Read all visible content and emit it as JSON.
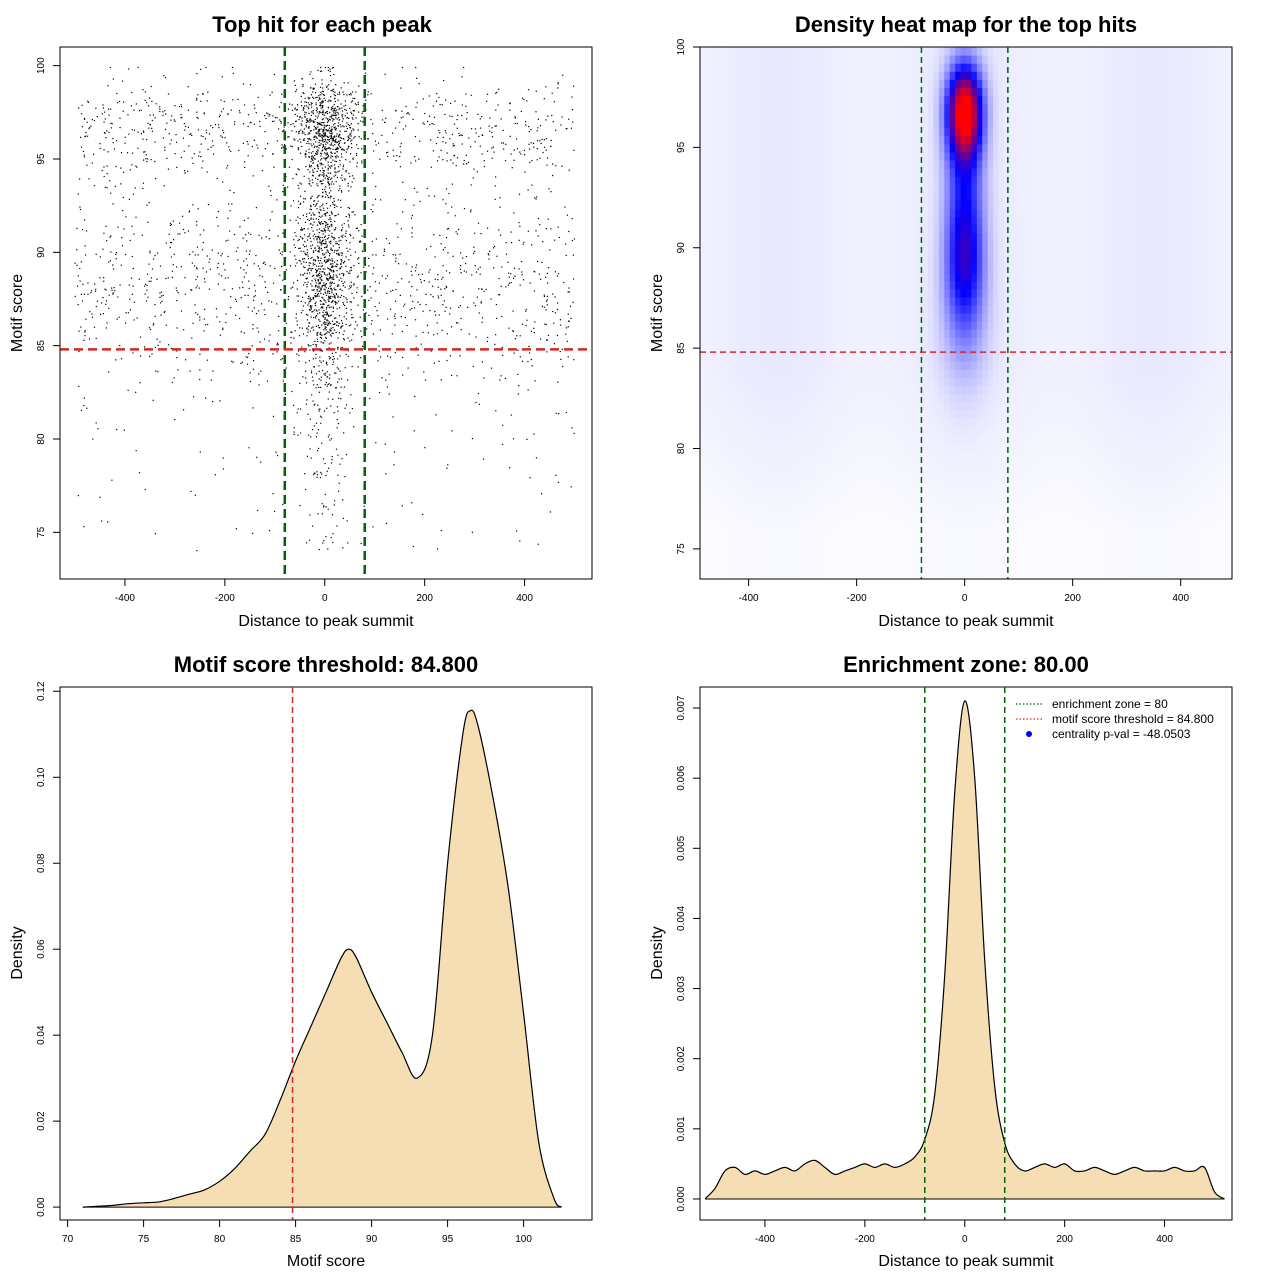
{
  "colors": {
    "enrichment_zone_line": "#006400",
    "threshold_line": "#d62728",
    "density_fill": "#f5deb3",
    "points": "#000000",
    "heat_low": "#ffffff",
    "heat_mid": "#0000ff",
    "heat_high": "#ff0000",
    "legend_point": "#0000ff"
  },
  "chart_data": [
    {
      "type": "scatter",
      "title": "Top hit for each peak",
      "xlabel": "Distance to peak summit",
      "ylabel": "Motif score",
      "xlim": [
        -530,
        535
      ],
      "ylim": [
        72.5,
        101
      ],
      "xticks": [
        -400,
        -200,
        0,
        200,
        400
      ],
      "xtick_labels": [
        "-400",
        "-200",
        "0",
        "200",
        "400"
      ],
      "yticks": [
        75,
        80,
        85,
        90,
        95,
        100
      ],
      "ytick_labels": [
        "75",
        "80",
        "85",
        "90",
        "95",
        "100"
      ],
      "vlines": [
        -80,
        80
      ],
      "hline": 84.8,
      "point_model": {
        "background_count": 1900,
        "central_count": 1700,
        "x_range": [
          -500,
          500
        ],
        "central_sd": 28,
        "background_score_modes": [
          88.0,
          96.5
        ],
        "central_score_modes": [
          89.0,
          96.5
        ]
      }
    },
    {
      "type": "heatmap",
      "title": "Density heat map for the top hits",
      "xlabel": "Distance to peak summit",
      "ylabel": "Motif score",
      "xlim": [
        -490,
        495
      ],
      "ylim": [
        73.5,
        100
      ],
      "xticks": [
        -400,
        -200,
        0,
        200,
        400
      ],
      "xtick_labels": [
        "-400",
        "-200",
        "0",
        "200",
        "400"
      ],
      "yticks": [
        75,
        80,
        85,
        90,
        95,
        100
      ],
      "ytick_labels": [
        "75",
        "80",
        "85",
        "90",
        "95",
        "100"
      ],
      "vlines": [
        -80,
        80
      ],
      "hline": 84.8,
      "hotspots": [
        {
          "x": 0,
          "y": 96.8,
          "sx": 22,
          "sy": 1.6,
          "w": 1.0
        },
        {
          "x": 0,
          "y": 89.5,
          "sx": 24,
          "sy": 2.2,
          "w": 0.42
        },
        {
          "x": 0,
          "y": 93.5,
          "sx": 24,
          "sy": 2.5,
          "w": 0.28
        },
        {
          "x": 0,
          "y": 86.5,
          "sx": 30,
          "sy": 2.5,
          "w": 0.15
        }
      ],
      "background_density": 0.045
    },
    {
      "type": "area",
      "title": "Motif score threshold: 84.800",
      "xlabel": "Motif score",
      "ylabel": "Density",
      "xlim": [
        69.5,
        104.5
      ],
      "ylim": [
        -0.003,
        0.121
      ],
      "xticks": [
        70,
        75,
        80,
        85,
        90,
        95,
        100
      ],
      "xtick_labels": [
        "70",
        "75",
        "80",
        "85",
        "90",
        "95",
        "100"
      ],
      "yticks": [
        0.0,
        0.02,
        0.04,
        0.06,
        0.08,
        0.1,
        0.12
      ],
      "ytick_labels": [
        "0.00",
        "0.02",
        "0.04",
        "0.06",
        "0.08",
        "0.10",
        "0.12"
      ],
      "vlines": [
        84.8
      ],
      "x": [
        71,
        72,
        73,
        74,
        75,
        76,
        77,
        78,
        79,
        80,
        81,
        82,
        83,
        84,
        85,
        86,
        87,
        88,
        88.5,
        89,
        90,
        91,
        92,
        93,
        94,
        95,
        96,
        96.5,
        97,
        98,
        99,
        100,
        101,
        102,
        102.5
      ],
      "y": [
        0.0,
        0.0002,
        0.0004,
        0.0008,
        0.001,
        0.0012,
        0.002,
        0.003,
        0.004,
        0.006,
        0.009,
        0.013,
        0.017,
        0.025,
        0.034,
        0.042,
        0.05,
        0.058,
        0.06,
        0.058,
        0.05,
        0.043,
        0.036,
        0.03,
        0.04,
        0.08,
        0.11,
        0.1155,
        0.112,
        0.095,
        0.074,
        0.045,
        0.015,
        0.002,
        0.0
      ]
    },
    {
      "type": "area",
      "title": "Enrichment zone: 80.00",
      "xlabel": "Distance to peak summit",
      "ylabel": "Density",
      "xlim": [
        -530,
        535
      ],
      "ylim": [
        -0.0003,
        0.0073
      ],
      "xticks": [
        -400,
        -200,
        0,
        200,
        400
      ],
      "xtick_labels": [
        "-400",
        "-200",
        "0",
        "200",
        "400"
      ],
      "yticks": [
        0.0,
        0.001,
        0.002,
        0.003,
        0.004,
        0.005,
        0.006,
        0.007
      ],
      "ytick_labels": [
        "0.000",
        "0.001",
        "0.002",
        "0.003",
        "0.004",
        "0.005",
        "0.006",
        "0.007"
      ],
      "vlines": [
        -80,
        80
      ],
      "x": [
        -520,
        -500,
        -480,
        -460,
        -440,
        -420,
        -400,
        -380,
        -360,
        -340,
        -320,
        -300,
        -280,
        -260,
        -240,
        -220,
        -200,
        -180,
        -160,
        -140,
        -120,
        -100,
        -80,
        -60,
        -40,
        -20,
        0,
        20,
        40,
        60,
        80,
        100,
        120,
        140,
        160,
        180,
        200,
        220,
        240,
        260,
        280,
        300,
        320,
        340,
        360,
        380,
        400,
        420,
        440,
        460,
        480,
        500,
        520
      ],
      "y": [
        0.0,
        0.00015,
        0.0004,
        0.00045,
        0.00035,
        0.0004,
        0.00035,
        0.0004,
        0.00045,
        0.0004,
        0.0005,
        0.00055,
        0.00045,
        0.00035,
        0.0004,
        0.00045,
        0.0005,
        0.00045,
        0.0005,
        0.00045,
        0.0005,
        0.0006,
        0.00085,
        0.0015,
        0.0032,
        0.0058,
        0.0071,
        0.006,
        0.0034,
        0.0016,
        0.0008,
        0.0005,
        0.0004,
        0.00045,
        0.0005,
        0.00045,
        0.0005,
        0.0004,
        0.0004,
        0.00045,
        0.0004,
        0.00035,
        0.0004,
        0.00045,
        0.0004,
        0.0004,
        0.0004,
        0.00045,
        0.0004,
        0.0004,
        0.00045,
        0.0001,
        0.0
      ],
      "legend": {
        "position": "top-right",
        "entries": [
          {
            "label": "enrichment zone = 80",
            "kind": "dotted-line",
            "color": "#006400"
          },
          {
            "label": "motif score threshold = 84.800",
            "kind": "dotted-line",
            "color": "#d62728"
          },
          {
            "label": "centrality p-val = -48.0503",
            "kind": "point",
            "color": "#0000ff"
          }
        ]
      }
    }
  ]
}
